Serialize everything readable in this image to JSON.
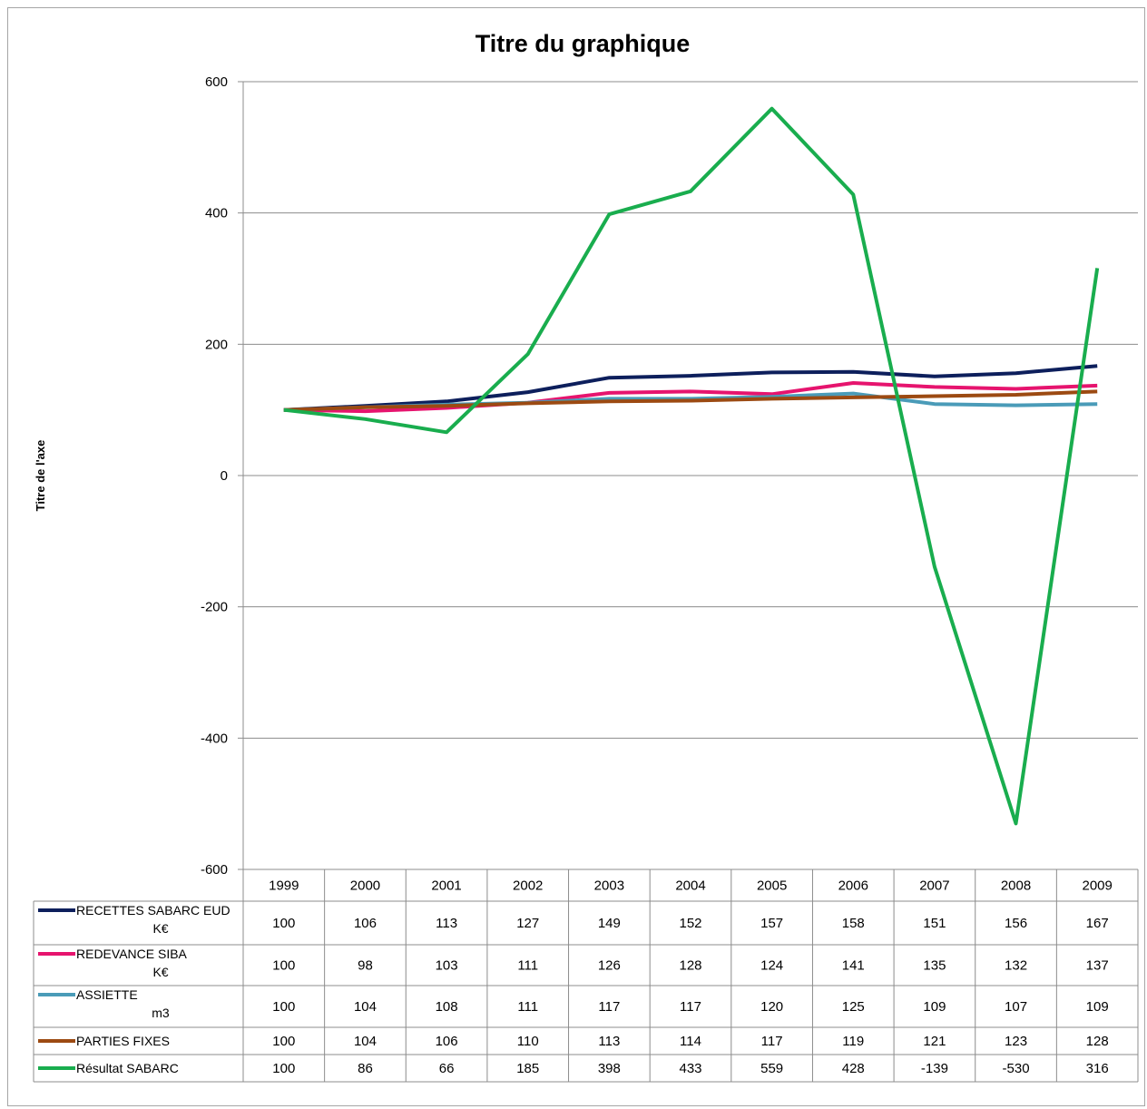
{
  "chart_data": {
    "type": "line",
    "title": "Titre du graphique",
    "xlabel": "",
    "ylabel": "Titre de l'axe",
    "ylim": [
      -600,
      600
    ],
    "yticks": [
      600,
      400,
      200,
      0,
      -200,
      -400,
      -600
    ],
    "grid": true,
    "legend_placement": "data-table-left",
    "categories": [
      "1999",
      "2000",
      "2001",
      "2002",
      "2003",
      "2004",
      "2005",
      "2006",
      "2007",
      "2008",
      "2009"
    ],
    "series": [
      {
        "name": "RECETTES  SABARC EUD",
        "name_line2": "K€",
        "color": "#0d1f5c",
        "values": [
          100,
          106,
          113,
          127,
          149,
          152,
          157,
          158,
          151,
          156,
          167
        ]
      },
      {
        "name": "REDEVANCE  SIBA",
        "name_line2": "K€",
        "color": "#e6146e",
        "values": [
          100,
          98,
          103,
          111,
          126,
          128,
          124,
          141,
          135,
          132,
          137
        ]
      },
      {
        "name": "ASSIETTE",
        "name_line2": "m3",
        "color": "#4a9bb8",
        "values": [
          100,
          104,
          108,
          111,
          117,
          117,
          120,
          125,
          109,
          107,
          109
        ]
      },
      {
        "name": "PARTIES FIXES",
        "name_line2": "",
        "color": "#9c4a12",
        "values": [
          100,
          104,
          106,
          110,
          113,
          114,
          117,
          119,
          121,
          123,
          128
        ]
      },
      {
        "name": "Résultat SABARC",
        "name_line2": "",
        "color": "#19ad4e",
        "values": [
          100,
          86,
          66,
          185,
          398,
          433,
          559,
          428,
          -139,
          -530,
          316
        ]
      }
    ]
  }
}
